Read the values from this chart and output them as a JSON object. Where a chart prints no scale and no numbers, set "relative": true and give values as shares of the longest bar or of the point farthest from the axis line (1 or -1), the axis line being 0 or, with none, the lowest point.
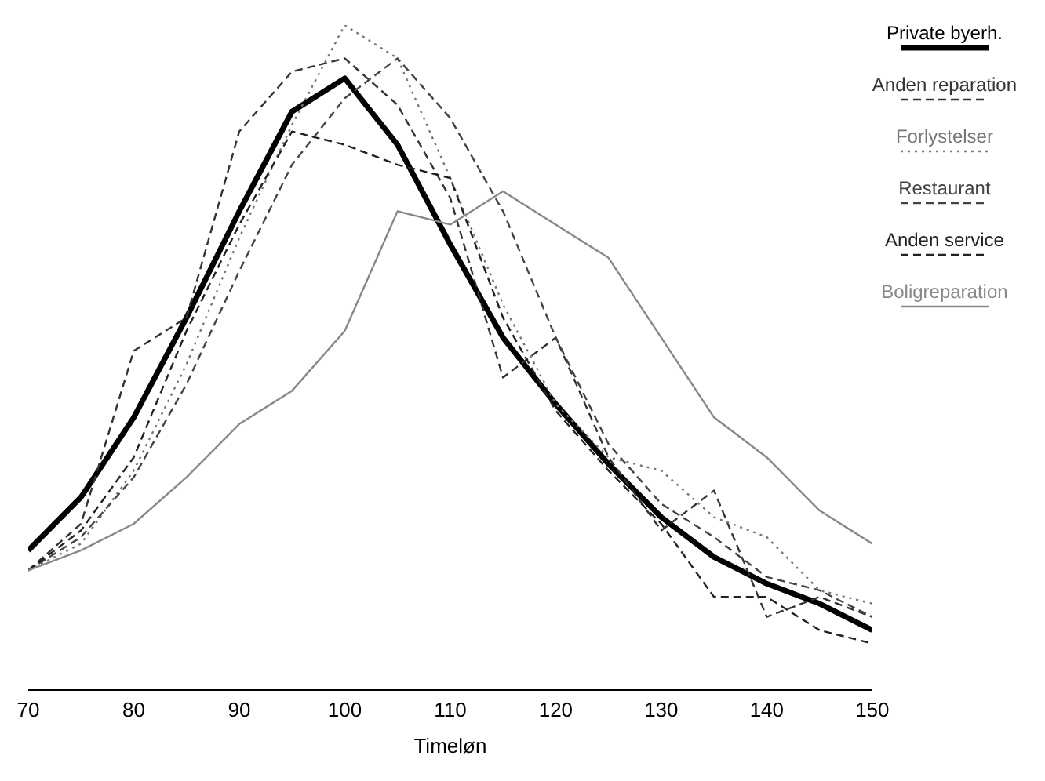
{
  "chart_data": {
    "type": "line",
    "relative": true,
    "xlabel": "Timeløn",
    "x": [
      70,
      75,
      80,
      85,
      90,
      95,
      100,
      105,
      110,
      115,
      120,
      125,
      130,
      135,
      140,
      145,
      150
    ],
    "xlim": [
      70,
      150
    ],
    "xticks": [
      70,
      80,
      90,
      100,
      110,
      120,
      130,
      140,
      150
    ],
    "legend": "top right",
    "grid": false,
    "marker": "none",
    "series": [
      {
        "name": "Private byerh.",
        "color": "#000000",
        "line_style": "solid",
        "values": [
          0.21,
          0.29,
          0.41,
          0.56,
          0.72,
          0.87,
          0.92,
          0.82,
          0.67,
          0.53,
          0.43,
          0.34,
          0.26,
          0.2,
          0.16,
          0.13,
          0.09
        ]
      },
      {
        "name": "Anden reparation",
        "color": "#333333",
        "line_style": "dashed",
        "values": [
          0.18,
          0.25,
          0.51,
          0.56,
          0.84,
          0.93,
          0.95,
          0.88,
          0.74,
          0.47,
          0.53,
          0.35,
          0.24,
          0.3,
          0.11,
          0.14,
          0.11
        ]
      },
      {
        "name": "Forlystelser",
        "color": "#777777",
        "line_style": "dotted",
        "values": [
          0.18,
          0.22,
          0.33,
          0.49,
          0.68,
          0.85,
          1,
          0.95,
          0.77,
          0.58,
          0.43,
          0.35,
          0.33,
          0.26,
          0.23,
          0.15,
          0.13
        ]
      },
      {
        "name": "Restaurant",
        "color": "#444444",
        "line_style": "dashed",
        "values": [
          0.18,
          0.23,
          0.32,
          0.46,
          0.63,
          0.79,
          0.89,
          0.95,
          0.86,
          0.72,
          0.53,
          0.37,
          0.28,
          0.23,
          0.17,
          0.15,
          0.11
        ]
      },
      {
        "name": "Anden service",
        "color": "#222222",
        "line_style": "dashed",
        "values": [
          0.18,
          0.24,
          0.35,
          0.54,
          0.7,
          0.84,
          0.82,
          0.79,
          0.77,
          0.56,
          0.42,
          0.33,
          0.25,
          0.14,
          0.14,
          0.09,
          0.07
        ]
      },
      {
        "name": "Boligreparation",
        "color": "#888888",
        "line_style": "solid",
        "values": [
          0.18,
          0.21,
          0.25,
          0.32,
          0.4,
          0.45,
          0.54,
          0.72,
          0.7,
          0.75,
          0.7,
          0.65,
          0.53,
          0.41,
          0.35,
          0.27,
          0.22
        ]
      }
    ]
  }
}
